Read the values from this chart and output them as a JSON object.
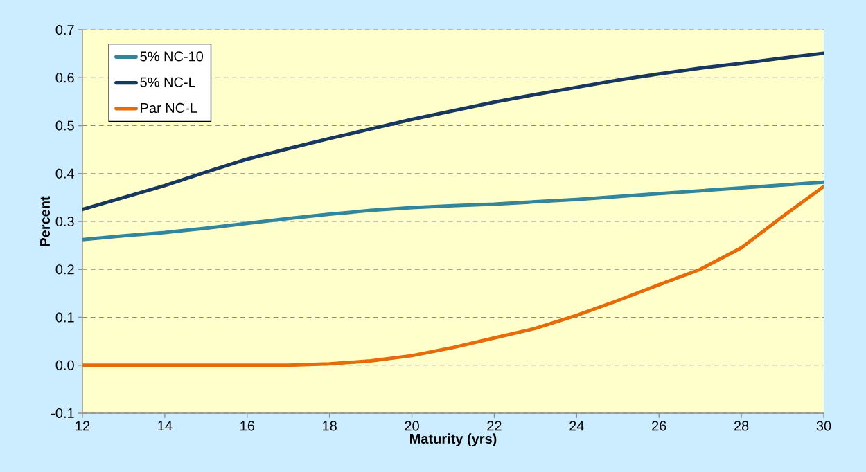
{
  "chart_data": {
    "type": "line",
    "xlabel": "Maturity (yrs)",
    "ylabel": "Percent",
    "x": [
      12,
      13,
      14,
      15,
      16,
      17,
      18,
      19,
      20,
      21,
      22,
      23,
      24,
      25,
      26,
      27,
      28,
      29,
      30
    ],
    "series": [
      {
        "name": "5% NC-10",
        "color": "#31859c",
        "values": [
          0.262,
          0.27,
          0.277,
          0.286,
          0.296,
          0.306,
          0.315,
          0.323,
          0.329,
          0.333,
          0.336,
          0.341,
          0.346,
          0.352,
          0.358,
          0.364,
          0.37,
          0.376,
          0.382
        ]
      },
      {
        "name": "5% NC-L",
        "color": "#17375e",
        "values": [
          0.325,
          0.35,
          0.375,
          0.403,
          0.43,
          0.452,
          0.473,
          0.493,
          0.513,
          0.531,
          0.549,
          0.565,
          0.58,
          0.595,
          0.608,
          0.62,
          0.63,
          0.641,
          0.651
        ]
      },
      {
        "name": "Par NC-L",
        "color": "#e46c0a",
        "values": [
          0,
          0,
          0,
          0,
          0,
          0,
          0.003,
          0.009,
          0.02,
          0.037,
          0.057,
          0.077,
          0.104,
          0.135,
          0.168,
          0.2,
          0.245,
          0.31,
          0.373
        ]
      }
    ],
    "xlim": [
      12,
      30
    ],
    "xticks": [
      12,
      14,
      16,
      18,
      20,
      22,
      24,
      26,
      28,
      30
    ],
    "ylim": [
      -0.1,
      0.7
    ],
    "yticks": [
      -0.1,
      {
        "value": 0,
        "label": "0.0"
      },
      0.1,
      0.2,
      0.3,
      0.4,
      0.5,
      0.6,
      0.7
    ],
    "grid": "y",
    "legend": "top left",
    "marker": "none",
    "line_style": "solid"
  }
}
